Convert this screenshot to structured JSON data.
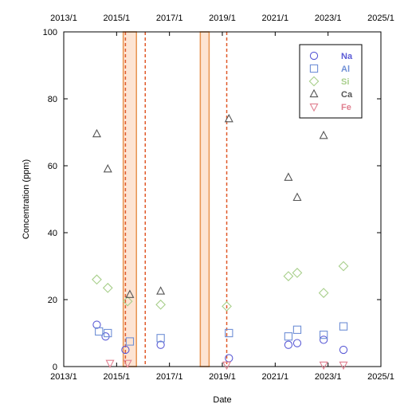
{
  "chart_data": {
    "type": "scatter",
    "title": "",
    "xlabel": "Date",
    "ylabel": "Concentration (ppm)",
    "xlim": [
      "2013-01",
      "2025-01"
    ],
    "ylim": [
      0,
      100
    ],
    "x_ticks": [
      "2013/1",
      "2015/1",
      "2017/1",
      "2019/1",
      "2021/1",
      "2023/1",
      "2025/1"
    ],
    "y_ticks": [
      0,
      20,
      40,
      60,
      80,
      100
    ],
    "grid": false,
    "legend_position": "top-right",
    "series": [
      {
        "name": "Na",
        "marker": "circle",
        "color": "#5b5bd6",
        "points": [
          {
            "x": "2014-04",
            "y": 12.5
          },
          {
            "x": "2014-08",
            "y": 9
          },
          {
            "x": "2015-05",
            "y": 5
          },
          {
            "x": "2016-09",
            "y": 6.5
          },
          {
            "x": "2019-04",
            "y": 2.5
          },
          {
            "x": "2021-07",
            "y": 6.5
          },
          {
            "x": "2021-11",
            "y": 7
          },
          {
            "x": "2022-11",
            "y": 8
          },
          {
            "x": "2023-08",
            "y": 5
          }
        ]
      },
      {
        "name": "Al",
        "marker": "square",
        "color": "#6f8fd6",
        "points": [
          {
            "x": "2014-05",
            "y": 10.5
          },
          {
            "x": "2014-09",
            "y": 10
          },
          {
            "x": "2015-07",
            "y": 7.5
          },
          {
            "x": "2016-09",
            "y": 8.5
          },
          {
            "x": "2019-04",
            "y": 10
          },
          {
            "x": "2021-07",
            "y": 9
          },
          {
            "x": "2021-11",
            "y": 11
          },
          {
            "x": "2022-11",
            "y": 9.5
          },
          {
            "x": "2023-08",
            "y": 12
          }
        ]
      },
      {
        "name": "Si",
        "marker": "diamond",
        "color": "#a8cf8b",
        "points": [
          {
            "x": "2014-04",
            "y": 26
          },
          {
            "x": "2014-09",
            "y": 23.5
          },
          {
            "x": "2015-06",
            "y": 19.5
          },
          {
            "x": "2016-09",
            "y": 18.5
          },
          {
            "x": "2019-03",
            "y": 18
          },
          {
            "x": "2021-07",
            "y": 27
          },
          {
            "x": "2021-11",
            "y": 28
          },
          {
            "x": "2022-11",
            "y": 22
          },
          {
            "x": "2023-08",
            "y": 30
          }
        ]
      },
      {
        "name": "Ca",
        "marker": "triangle-up",
        "color": "#555555",
        "points": [
          {
            "x": "2014-04",
            "y": 69.5
          },
          {
            "x": "2014-09",
            "y": 59
          },
          {
            "x": "2015-07",
            "y": 21.5
          },
          {
            "x": "2016-09",
            "y": 22.5
          },
          {
            "x": "2019-04",
            "y": 74
          },
          {
            "x": "2021-07",
            "y": 56.5
          },
          {
            "x": "2021-11",
            "y": 50.5
          },
          {
            "x": "2022-11",
            "y": 69
          }
        ]
      },
      {
        "name": "Fe",
        "marker": "triangle-down",
        "color": "#e07f8f",
        "points": [
          {
            "x": "2014-10",
            "y": 1
          },
          {
            "x": "2015-06",
            "y": 1
          },
          {
            "x": "2019-03",
            "y": 0.5
          },
          {
            "x": "2022-11",
            "y": 0.5
          },
          {
            "x": "2023-08",
            "y": 0.5
          }
        ]
      }
    ],
    "dashed_lines_x": [
      "2015-05",
      "2016-02",
      "2019-03"
    ],
    "shaded_bands_x": [
      [
        "2015-04",
        "2015-10"
      ],
      [
        "2018-03",
        "2018-07"
      ]
    ],
    "colors": {
      "reference_line": "#e05a2a",
      "band_outline": "#e8934f",
      "band_fill": "#fde4d3"
    }
  }
}
